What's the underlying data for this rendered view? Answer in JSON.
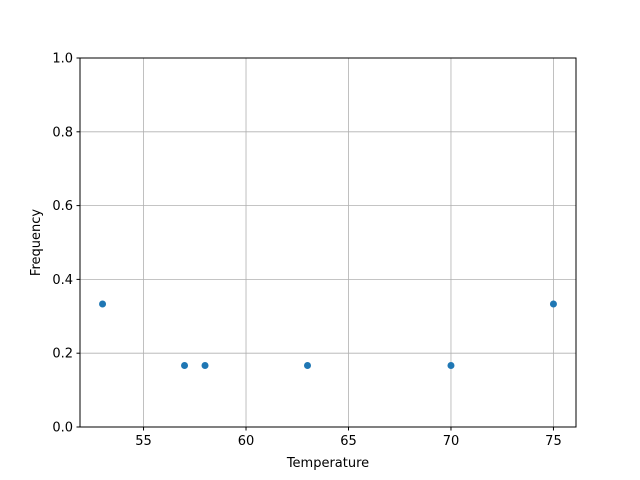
{
  "chart_data": {
    "type": "scatter",
    "title": "",
    "xlabel": "Temperature",
    "ylabel": "Frequency",
    "xlim": [
      51.9,
      76.1
    ],
    "ylim": [
      0,
      1
    ],
    "xticks": [
      "55",
      "60",
      "65",
      "70",
      "75"
    ],
    "yticks": [
      "0.0",
      "0.2",
      "0.4",
      "0.6",
      "0.8",
      "1.0"
    ],
    "grid": true,
    "color": "#1f77b4",
    "points": [
      {
        "x": 53,
        "y": 0.3333
      },
      {
        "x": 57,
        "y": 0.1667
      },
      {
        "x": 58,
        "y": 0.1667
      },
      {
        "x": 63,
        "y": 0.1667
      },
      {
        "x": 70,
        "y": 0.1667
      },
      {
        "x": 75,
        "y": 0.3333
      }
    ]
  }
}
